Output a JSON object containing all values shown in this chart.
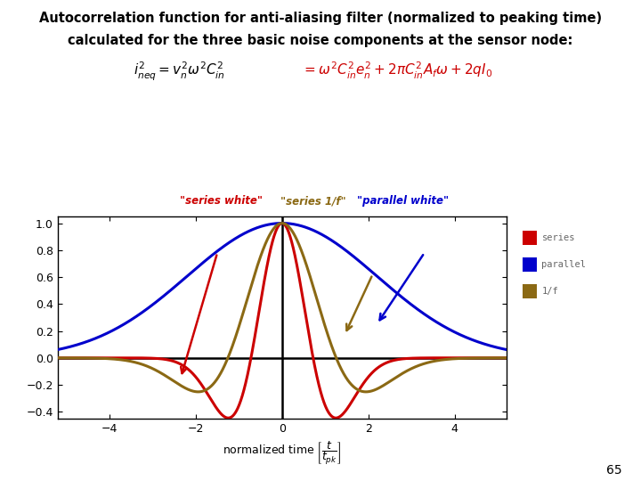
{
  "title_line1": "Autocorrelation function for anti-aliasing filter (normalized to peaking time)",
  "title_line2": "calculated for the three basic noise components at the sensor node:",
  "xlim": [
    -5.2,
    5.2
  ],
  "ylim": [
    -0.45,
    1.05
  ],
  "yticks": [
    -0.4,
    -0.2,
    0.0,
    0.2,
    0.4,
    0.6,
    0.8,
    1.0
  ],
  "xticks": [
    -4,
    -2,
    0,
    2,
    4
  ],
  "color_series": "#cc0000",
  "color_parallel": "#0000cc",
  "color_1f": "#8B6914",
  "legend_labels": [
    "series",
    "parallel",
    "1/f"
  ],
  "bg_color": "#ffffff",
  "page_number": "65"
}
